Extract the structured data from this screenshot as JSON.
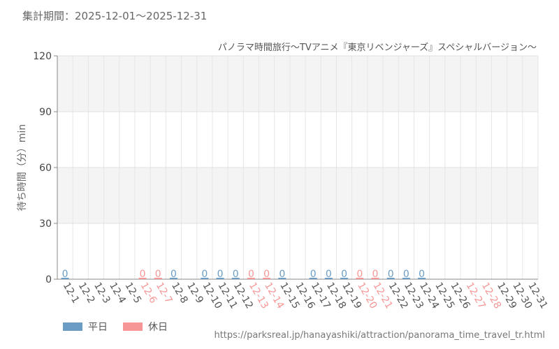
{
  "header": {
    "period_label": "集計期間：2025-12-01～2025-12-31"
  },
  "chart_data": {
    "type": "bar",
    "title": "パノラマ時間旅行～TVアニメ『東京リベンジャーズ』スペシャルバージョン～",
    "ylabel": "待ち時間（分）min",
    "ylim": [
      0,
      120
    ],
    "yticks": [
      0,
      30,
      60,
      90,
      120
    ],
    "grid": true,
    "categories": [
      "12-1",
      "12-2",
      "12-3",
      "12-4",
      "12-5",
      "12-6",
      "12-7",
      "12-8",
      "12-9",
      "12-10",
      "12-11",
      "12-12",
      "12-13",
      "12-14",
      "12-15",
      "12-16",
      "12-17",
      "12-18",
      "12-19",
      "12-20",
      "12-21",
      "12-22",
      "12-23",
      "12-24",
      "12-25",
      "12-26",
      "12-27",
      "12-28",
      "12-29",
      "12-30",
      "12-31"
    ],
    "day_type": [
      "平日",
      "平日",
      "平日",
      "平日",
      "平日",
      "休日",
      "休日",
      "平日",
      "平日",
      "平日",
      "平日",
      "平日",
      "休日",
      "休日",
      "平日",
      "平日",
      "平日",
      "平日",
      "平日",
      "休日",
      "休日",
      "平日",
      "平日",
      "平日",
      "平日",
      "平日",
      "休日",
      "休日",
      "平日",
      "平日",
      "平日"
    ],
    "values": [
      0,
      null,
      null,
      null,
      null,
      0,
      0,
      0,
      null,
      0,
      0,
      0,
      0,
      0,
      0,
      null,
      0,
      0,
      0,
      0,
      0,
      0,
      0,
      0,
      null,
      null,
      null,
      null,
      null,
      null,
      null
    ],
    "series": [
      {
        "name": "平日",
        "color": "#6a9cc5"
      },
      {
        "name": "休日",
        "color": "#f79696"
      }
    ]
  },
  "legend": {
    "weekday_label": "平日",
    "holiday_label": "休日"
  },
  "footer": {
    "source_url": "https://parksreal.jp/hanayashiki/attraction/panorama_time_travel_tr.html"
  },
  "colors": {
    "weekday": "#6a9cc5",
    "holiday": "#f79696",
    "tick_text": "#555555"
  }
}
